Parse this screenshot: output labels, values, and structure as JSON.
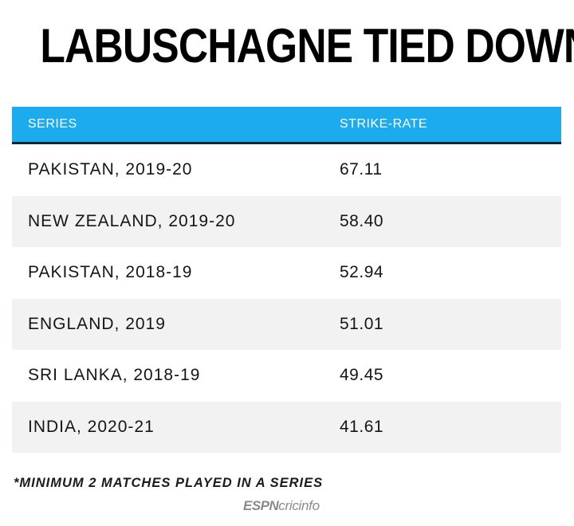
{
  "title": "LABUSCHAGNE TIED DOWN",
  "chart_data": {
    "type": "table",
    "columns": [
      "SERIES",
      "STRIKE-RATE"
    ],
    "rows": [
      {
        "series": "PAKISTAN, 2019-20",
        "strike_rate": "67.11"
      },
      {
        "series": "NEW ZEALAND, 2019-20",
        "strike_rate": "58.40"
      },
      {
        "series": "PAKISTAN, 2018-19",
        "strike_rate": "52.94"
      },
      {
        "series": "ENGLAND, 2019",
        "strike_rate": "51.01"
      },
      {
        "series": "SRI LANKA, 2018-19",
        "strike_rate": "49.45"
      },
      {
        "series": "INDIA, 2020-21",
        "strike_rate": "41.61"
      }
    ]
  },
  "footnote": "*MINIMUM 2 MATCHES PLAYED IN A SERIES",
  "logo": {
    "espn": "ESPN",
    "cricinfo": "cricinfo"
  },
  "colors": {
    "header_bg": "#1cabec",
    "header_rule": "#0b2638",
    "row_alt_bg": "#f2f2f2"
  }
}
